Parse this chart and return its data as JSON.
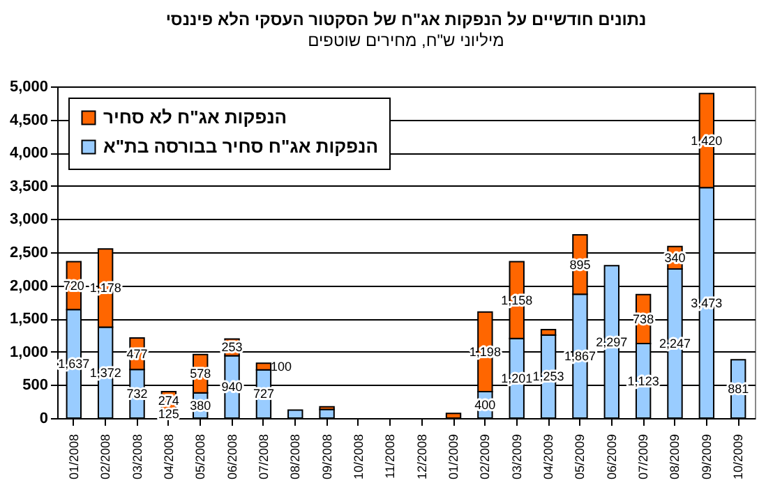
{
  "chart_data": {
    "type": "bar",
    "title": "נתונים חודשיים על הנפקות אג\"ח של הסקטור העסקי הלא פיננסי",
    "subtitle": "מיליוני ש\"ח, מחירים שוטפים",
    "categories": [
      "01/2008",
      "02/2008",
      "03/2008",
      "04/2008",
      "05/2008",
      "06/2008",
      "07/2008",
      "08/2008",
      "09/2008",
      "10/2008",
      "11/2008",
      "12/2008",
      "01/2009",
      "02/2009",
      "03/2009",
      "04/2009",
      "05/2009",
      "06/2009",
      "07/2009",
      "08/2009",
      "09/2009",
      "10/2009"
    ],
    "stacked": true,
    "series": [
      {
        "name": "הנפקות אג\"ח סחיר בבורסה בת\"א",
        "color": "#99ccff",
        "values": [
          1637,
          1372,
          732,
          125,
          380,
          940,
          727,
          120,
          130,
          0,
          0,
          0,
          0,
          400,
          1201,
          1253,
          1867,
          2297,
          1123,
          2247,
          3473,
          881
        ],
        "value_labels": [
          "1,637",
          "1,372",
          "732",
          "125",
          "380",
          "940",
          "727",
          null,
          null,
          null,
          null,
          null,
          null,
          "400",
          "1,201",
          "1,253",
          "1,867",
          "2,297",
          "1,123",
          "2,247",
          "3,473",
          "881"
        ]
      },
      {
        "name": "הנפקות אג\"ח לא סחיר",
        "color": "#ff6600",
        "values": [
          720,
          1178,
          477,
          274,
          578,
          253,
          100,
          0,
          40,
          0,
          0,
          0,
          70,
          1198,
          1158,
          80,
          895,
          0,
          738,
          340,
          1420,
          0
        ],
        "value_labels": [
          "720",
          "1,178",
          "477",
          "274",
          "578",
          "253",
          "100",
          null,
          null,
          null,
          null,
          null,
          null,
          "1,198",
          "1,158",
          null,
          "895",
          null,
          "738",
          "340",
          "1,420",
          null
        ]
      }
    ],
    "ylim": [
      0,
      5000
    ],
    "yticks": [
      0,
      500,
      {
        "value": 1000,
        "label": "1,000"
      },
      {
        "value": 1500,
        "label": "1,500"
      },
      {
        "value": 2000,
        "label": "2,000"
      },
      {
        "value": 2500,
        "label": "2,500"
      },
      {
        "value": 3000,
        "label": "3,000"
      },
      {
        "value": 3500,
        "label": "3,500"
      },
      {
        "value": 4000,
        "label": "4,000"
      },
      {
        "value": 4500,
        "label": "4,500"
      },
      {
        "value": 5000,
        "label": "5,000"
      }
    ],
    "grid": "y",
    "legend": "top left"
  }
}
